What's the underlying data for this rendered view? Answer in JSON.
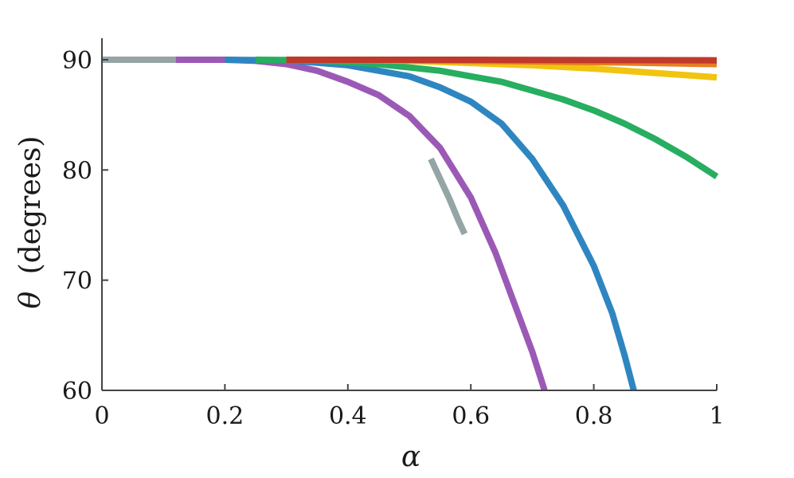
{
  "chart_data": {
    "type": "line",
    "xlabel": "α",
    "ylabel_symbol": "θ",
    "ylabel_text": "(degrees)",
    "xlim": [
      0,
      1
    ],
    "ylim": [
      60,
      90
    ],
    "xticks": [
      0,
      0.2,
      0.4,
      0.6,
      0.8,
      1
    ],
    "xtick_labels": [
      "0",
      "0.2",
      "0.4",
      "0.6",
      "0.8",
      "1"
    ],
    "yticks": [
      60,
      70,
      80,
      90
    ],
    "ytick_labels": [
      "60",
      "70",
      "80",
      "90"
    ],
    "grid": false,
    "legend": "none",
    "series": [
      {
        "color": "#95a5a6",
        "x": [
          0,
          0.12
        ],
        "y": [
          90,
          90
        ]
      },
      {
        "color": "#95a5a6",
        "x": [
          0.535,
          0.55,
          0.565,
          0.58,
          0.59
        ],
        "y": [
          81.0,
          79.2,
          77.4,
          75.4,
          74.2
        ]
      },
      {
        "color": "#9b59b6",
        "x": [
          0.12,
          0.2,
          0.25,
          0.3,
          0.35,
          0.4,
          0.45,
          0.5,
          0.55,
          0.6,
          0.64,
          0.67,
          0.7,
          0.72
        ],
        "y": [
          90,
          90,
          89.9,
          89.6,
          89.0,
          88.0,
          86.8,
          84.9,
          82.0,
          77.5,
          72.5,
          68.0,
          63.5,
          60
        ]
      },
      {
        "color": "#2e86c1",
        "x": [
          0.2,
          0.3,
          0.4,
          0.45,
          0.5,
          0.55,
          0.6,
          0.65,
          0.7,
          0.75,
          0.8,
          0.83,
          0.85,
          0.865
        ],
        "y": [
          90,
          89.95,
          89.5,
          89.0,
          88.5,
          87.5,
          86.2,
          84.2,
          81.0,
          76.8,
          71.3,
          67.0,
          63.2,
          60
        ]
      },
      {
        "color": "#27ae60",
        "x": [
          0.25,
          0.35,
          0.45,
          0.55,
          0.6,
          0.65,
          0.7,
          0.75,
          0.8,
          0.85,
          0.9,
          0.95,
          1.0
        ],
        "y": [
          90,
          89.95,
          89.6,
          89.0,
          88.5,
          88.0,
          87.2,
          86.4,
          85.4,
          84.2,
          82.8,
          81.2,
          79.4
        ]
      },
      {
        "color": "#f1c40f",
        "x": [
          0.3,
          0.4,
          0.5,
          0.6,
          0.7,
          0.8,
          0.9,
          1.0
        ],
        "y": [
          90,
          90,
          89.9,
          89.7,
          89.5,
          89.2,
          88.8,
          88.4
        ]
      },
      {
        "color": "#e67e22",
        "x": [
          0.3,
          0.5,
          0.7,
          0.85,
          1.0
        ],
        "y": [
          90,
          89.95,
          89.85,
          89.75,
          89.6
        ]
      },
      {
        "color": "#c0392b",
        "x": [
          0.3,
          0.6,
          1.0
        ],
        "y": [
          90,
          90,
          89.95
        ]
      }
    ]
  }
}
